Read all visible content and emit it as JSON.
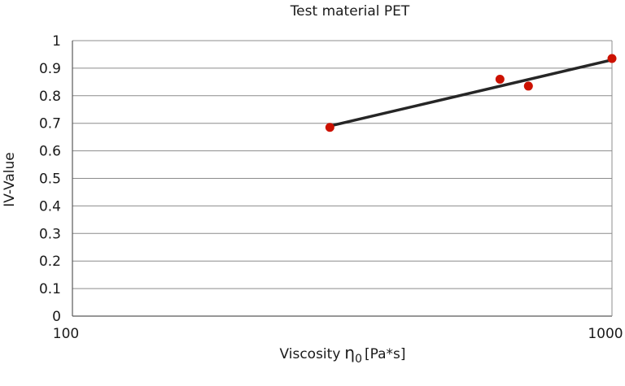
{
  "chart_data": {
    "type": "scatter",
    "title": "Test material PET",
    "xlabel": "Viscosity",
    "xlabel_symbol": "η",
    "xlabel_subscript": "0",
    "xlabel_unit": "[Pa*s]",
    "ylabel": "IV-Value",
    "x_scale": "log",
    "xlim": [
      100,
      1000
    ],
    "ylim": [
      0,
      1
    ],
    "x_ticks": [
      "100",
      "1000"
    ],
    "y_ticks": [
      "0",
      "0.1",
      "0.2",
      "0.3",
      "0.4",
      "0.5",
      "0.6",
      "0.7",
      "0.8",
      "0.9",
      "1"
    ],
    "grid": "horizontal",
    "series": [
      {
        "points": [
          {
            "x": 300,
            "y": 0.685
          },
          {
            "x": 620,
            "y": 0.86
          },
          {
            "x": 700,
            "y": 0.835
          },
          {
            "x": 1000,
            "y": 0.935
          }
        ],
        "color": "#cc1100"
      }
    ],
    "trendline": {
      "x": [
        300,
        1000
      ],
      "y": [
        0.69,
        0.93
      ],
      "color": "#262626"
    }
  }
}
